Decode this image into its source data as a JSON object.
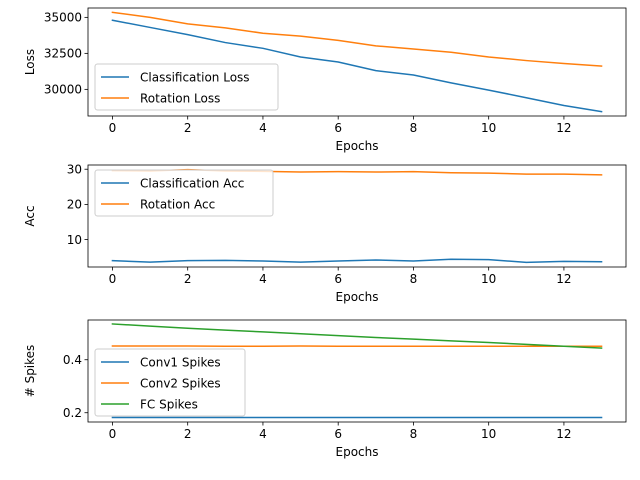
{
  "chart_data": [
    {
      "type": "line",
      "xlabel": "Epochs",
      "ylabel": "Loss",
      "x": [
        0,
        1,
        2,
        3,
        4,
        5,
        6,
        7,
        8,
        9,
        10,
        11,
        12,
        13
      ],
      "xticks": [
        0,
        2,
        4,
        6,
        8,
        10,
        12
      ],
      "xtick_labels": [
        "0",
        "2",
        "4",
        "6",
        "8",
        "10",
        "12"
      ],
      "xlim": [
        -0.65,
        13.65
      ],
      "ylim": [
        28150,
        35650
      ],
      "yticks": [
        30000,
        32500,
        35000
      ],
      "ytick_labels": [
        "30000",
        "32500",
        "35000"
      ],
      "legend_position": "lower-left",
      "series": [
        {
          "name": "Classification Loss",
          "color": "#1f77b4",
          "values": [
            34800,
            34300,
            33800,
            33250,
            32850,
            32250,
            31900,
            31300,
            31000,
            30450,
            29950,
            29420,
            28880,
            28450
          ]
        },
        {
          "name": "Rotation Loss",
          "color": "#ff7f0e",
          "values": [
            35350,
            35000,
            34550,
            34270,
            33900,
            33700,
            33400,
            33020,
            32800,
            32580,
            32250,
            32000,
            31800,
            31620
          ]
        }
      ]
    },
    {
      "type": "line",
      "xlabel": "Epochs",
      "ylabel": "Acc",
      "x": [
        0,
        1,
        2,
        3,
        4,
        5,
        6,
        7,
        8,
        9,
        10,
        11,
        12,
        13
      ],
      "xticks": [
        0,
        2,
        4,
        6,
        8,
        10,
        12
      ],
      "xtick_labels": [
        "0",
        "2",
        "4",
        "6",
        "8",
        "10",
        "12"
      ],
      "xlim": [
        -0.65,
        13.65
      ],
      "ylim": [
        2.2,
        31.2
      ],
      "yticks": [
        10,
        20,
        30
      ],
      "ytick_labels": [
        "10",
        "20",
        "30"
      ],
      "legend_position": "upper-left",
      "series": [
        {
          "name": "Classification Acc",
          "color": "#1f77b4",
          "values": [
            4.0,
            3.6,
            4.0,
            4.1,
            3.9,
            3.6,
            3.9,
            4.2,
            3.9,
            4.4,
            4.3,
            3.5,
            3.8,
            3.7
          ]
        },
        {
          "name": "Rotation Acc",
          "color": "#ff7f0e",
          "values": [
            29.6,
            29.5,
            29.9,
            29.5,
            29.4,
            29.2,
            29.3,
            29.2,
            29.3,
            29.0,
            28.9,
            28.6,
            28.6,
            28.4
          ]
        }
      ]
    },
    {
      "type": "line",
      "xlabel": "Epochs",
      "ylabel": "# Spikes",
      "x": [
        0,
        1,
        2,
        3,
        4,
        5,
        6,
        7,
        8,
        9,
        10,
        11,
        12,
        13
      ],
      "xticks": [
        0,
        2,
        4,
        6,
        8,
        10,
        12
      ],
      "xtick_labels": [
        "0",
        "2",
        "4",
        "6",
        "8",
        "10",
        "12"
      ],
      "xlim": [
        -0.65,
        13.65
      ],
      "ylim": [
        0.165,
        0.55
      ],
      "yticks": [
        0.2,
        0.4
      ],
      "ytick_labels": [
        "0.2",
        "0.4"
      ],
      "legend_position": "lower-left",
      "series": [
        {
          "name": "Conv1 Spikes",
          "color": "#1f77b4",
          "values": [
            0.182,
            0.182,
            0.182,
            0.182,
            0.182,
            0.182,
            0.182,
            0.182,
            0.182,
            0.182,
            0.182,
            0.182,
            0.182,
            0.182
          ]
        },
        {
          "name": "Conv2 Spikes",
          "color": "#ff7f0e",
          "values": [
            0.452,
            0.452,
            0.452,
            0.451,
            0.451,
            0.452,
            0.451,
            0.451,
            0.451,
            0.451,
            0.451,
            0.451,
            0.451,
            0.451
          ]
        },
        {
          "name": "FC Spikes",
          "color": "#2ca02c",
          "values": [
            0.535,
            0.527,
            0.519,
            0.512,
            0.505,
            0.498,
            0.491,
            0.484,
            0.478,
            0.471,
            0.465,
            0.458,
            0.451,
            0.444
          ]
        }
      ]
    }
  ]
}
